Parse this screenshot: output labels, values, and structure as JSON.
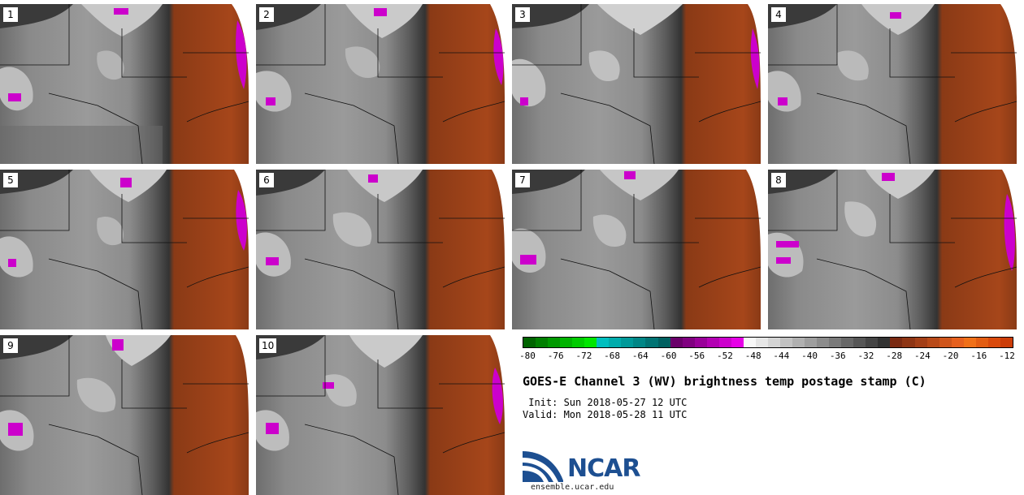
{
  "panels": [
    {
      "label": "1"
    },
    {
      "label": "2"
    },
    {
      "label": "3"
    },
    {
      "label": "4"
    },
    {
      "label": "5"
    },
    {
      "label": "6"
    },
    {
      "label": "7"
    },
    {
      "label": "8"
    },
    {
      "label": "9"
    },
    {
      "label": "10"
    }
  ],
  "colorbar": {
    "colors": [
      "#006400",
      "#007f00",
      "#009900",
      "#00b300",
      "#00cc00",
      "#00e600",
      "#00bfbf",
      "#00acac",
      "#009999",
      "#008686",
      "#007373",
      "#006060",
      "#6a006a",
      "#800080",
      "#990099",
      "#b300b3",
      "#cc00cc",
      "#e600e6",
      "#f8f8f8",
      "#e6e6e6",
      "#d4d4d4",
      "#c2c2c2",
      "#b0b0b0",
      "#9e9e9e",
      "#8c8c8c",
      "#7a7a7a",
      "#686868",
      "#565656",
      "#444444",
      "#323232",
      "#7a2a12",
      "#8e3514",
      "#a33f17",
      "#b84a19",
      "#cf551b",
      "#e6601e",
      "#f07018",
      "#e35d12",
      "#d94a0c",
      "#cc3d08"
    ],
    "tick_labels": [
      "-80",
      "-76",
      "-72",
      "-68",
      "-64",
      "-60",
      "-56",
      "-52",
      "-48",
      "-44",
      "-40",
      "-36",
      "-32",
      "-28",
      "-24",
      "-20",
      "-16",
      "-12"
    ]
  },
  "title": "GOES-E Channel 3 (WV) brightness temp postage stamp (C)",
  "init_line": " Init: Sun 2018-05-27 12 UTC",
  "valid_line": "Valid: Mon 2018-05-28 11 UTC",
  "logo": {
    "text": "NCAR",
    "url": "ensemble.ucar.edu"
  }
}
